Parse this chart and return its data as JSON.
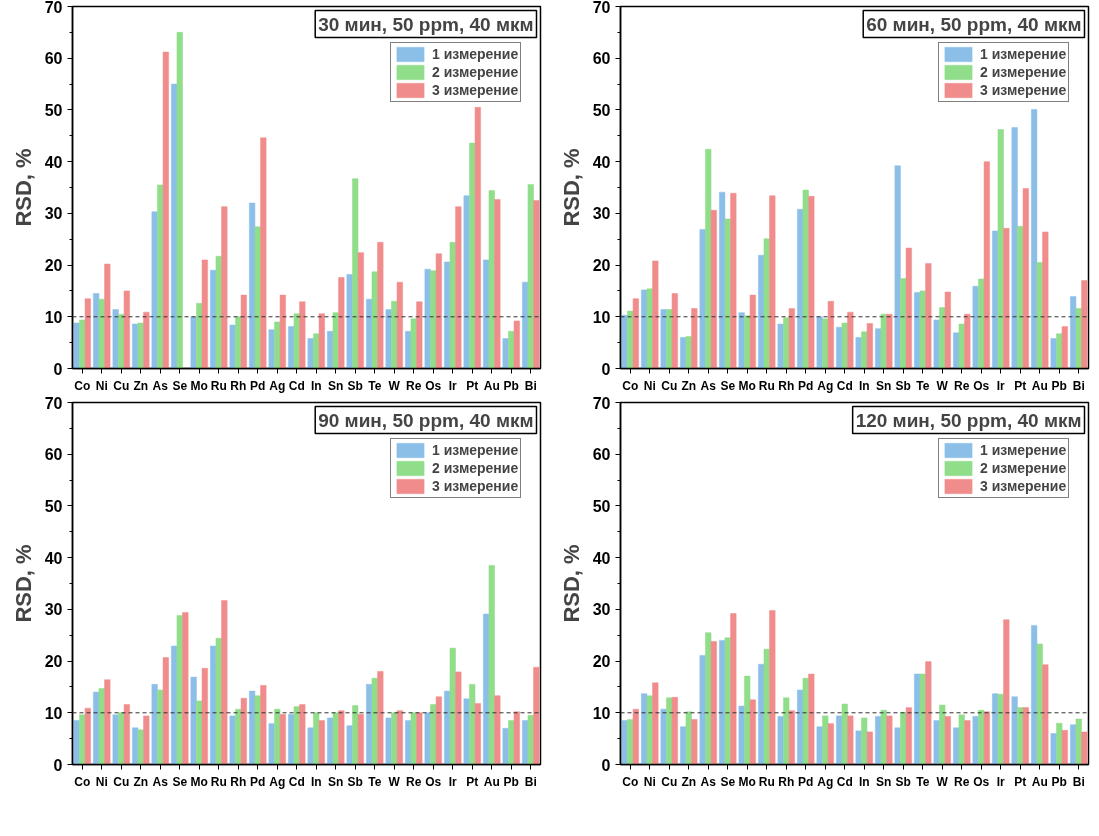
{
  "chart_data": [
    {
      "type": "bar",
      "title": "30 мин, 50 ppm, 40 мкм",
      "ylabel": "RSD, %",
      "legend": "top right",
      "grid": false,
      "categories": [
        "Co",
        "Ni",
        "Cu",
        "Zn",
        "As",
        "Se",
        "Mo",
        "Ru",
        "Rh",
        "Pd",
        "Ag",
        "Cd",
        "In",
        "Sn",
        "Sb",
        "Te",
        "W",
        "Re",
        "Os",
        "Ir",
        "Pt",
        "Au",
        "Pb",
        "Bi"
      ],
      "series": [
        {
          "name": "1 измерение",
          "color": "#8bbfe8",
          "values": [
            8.8,
            14.5,
            11.4,
            8.6,
            30.3,
            55,
            10,
            19,
            8.4,
            32,
            7.5,
            8.1,
            5.8,
            7.2,
            18.2,
            13.4,
            11.4,
            7.2,
            19.2,
            20.6,
            33.4,
            21,
            5.8,
            16.7
          ]
        },
        {
          "name": "2 измерение",
          "color": "#90dd8a",
          "values": [
            9.4,
            13.4,
            10.5,
            8.8,
            35.5,
            65,
            12.6,
            21.7,
            10,
            27.4,
            9,
            10.6,
            6.7,
            10.8,
            36.7,
            18.7,
            13,
            9.6,
            18.9,
            24.4,
            43.6,
            34.4,
            7.2,
            35.6
          ]
        },
        {
          "name": "3 измерение",
          "color": "#f08c8c",
          "values": [
            13.5,
            20.2,
            15,
            10.9,
            61.2,
            null,
            21,
            31.3,
            14.2,
            44.6,
            14.2,
            12.9,
            10.6,
            17.6,
            22.4,
            24.4,
            16.7,
            12.9,
            22.2,
            31.3,
            50.5,
            32.7,
            9.2,
            32.5
          ]
        }
      ],
      "ylim": [
        0,
        70
      ],
      "yticks": [
        0,
        10,
        20,
        30,
        40,
        50,
        60,
        70
      ],
      "ref_lines": [
        {
          "axis": "y",
          "value": 10,
          "color": "#333333",
          "line_style": "dashed"
        }
      ]
    },
    {
      "type": "bar",
      "title": "60 мин, 50 ppm, 40 мкм",
      "ylabel": "RSD, %",
      "legend": "top right",
      "grid": false,
      "categories": [
        "Co",
        "Ni",
        "Cu",
        "Zn",
        "As",
        "Se",
        "Mo",
        "Ru",
        "Rh",
        "Pd",
        "Ag",
        "Cd",
        "In",
        "Sn",
        "Sb",
        "Te",
        "W",
        "Re",
        "Os",
        "Ir",
        "Pt",
        "Au",
        "Pb",
        "Bi"
      ],
      "series": [
        {
          "name": "1 измерение",
          "color": "#8bbfe8",
          "values": [
            10.3,
            15.2,
            11.4,
            6.0,
            26.9,
            34.1,
            10.8,
            21.9,
            8.6,
            30.8,
            10.0,
            8.0,
            6.0,
            7.7,
            39.2,
            14.7,
            9.4,
            6.9,
            15.9,
            26.6,
            46.6,
            50.1,
            5.8,
            13.9
          ]
        },
        {
          "name": "2 измерение",
          "color": "#90dd8a",
          "values": [
            11.1,
            15.4,
            11.4,
            6.2,
            42.4,
            28.9,
            10.2,
            25.1,
            9.8,
            34.5,
            9.6,
            8.8,
            7.1,
            10.5,
            17.4,
            15.0,
            11.8,
            8.6,
            17.3,
            46.2,
            27.5,
            20.5,
            6.7,
            11.6
          ]
        },
        {
          "name": "3 измерение",
          "color": "#f08c8c",
          "values": [
            13.5,
            20.8,
            14.5,
            11.6,
            30.6,
            33.9,
            14.2,
            33.4,
            11.6,
            33.3,
            13.0,
            10.9,
            8.7,
            10.5,
            23.3,
            20.3,
            14.8,
            10.5,
            40.0,
            27.1,
            34.8,
            26.4,
            8.1,
            17.0
          ]
        }
      ],
      "ylim": [
        0,
        70
      ],
      "yticks": [
        0,
        10,
        20,
        30,
        40,
        50,
        60,
        70
      ],
      "ref_lines": [
        {
          "axis": "y",
          "value": 10,
          "color": "#333333",
          "line_style": "dashed"
        }
      ]
    },
    {
      "type": "bar",
      "title": "90 мин, 50 ppm, 40 мкм",
      "ylabel": "RSD, %",
      "legend": "top right",
      "grid": false,
      "categories": [
        "Co",
        "Ni",
        "Cu",
        "Zn",
        "As",
        "Se",
        "Mo",
        "Ru",
        "Rh",
        "Pd",
        "Ag",
        "Cd",
        "In",
        "Sn",
        "Sb",
        "Te",
        "W",
        "Re",
        "Os",
        "Ir",
        "Pt",
        "Au",
        "Pb",
        "Bi"
      ],
      "series": [
        {
          "name": "1 измерение",
          "color": "#8bbfe8",
          "values": [
            8.5,
            14.0,
            9.6,
            7.1,
            15.5,
            22.9,
            16.9,
            22.9,
            9.4,
            14.2,
            7.9,
            9.7,
            7.1,
            9.0,
            7.5,
            15.5,
            9.0,
            8.5,
            10.0,
            14.2,
            12.7,
            29.1,
            7.0,
            8.5
          ]
        },
        {
          "name": "2 измерение",
          "color": "#90dd8a",
          "values": [
            9.6,
            14.7,
            10.0,
            6.7,
            14.4,
            28.8,
            12.3,
            24.4,
            10.7,
            13.3,
            10.7,
            11.2,
            10.0,
            10.0,
            11.4,
            16.7,
            10.0,
            10.0,
            11.6,
            22.5,
            15.5,
            38.5,
            8.5,
            9.5
          ]
        },
        {
          "name": "3 измерение",
          "color": "#f08c8c",
          "values": [
            10.9,
            16.4,
            11.6,
            9.4,
            20.7,
            29.4,
            18.6,
            31.7,
            12.8,
            15.3,
            9.7,
            11.6,
            8.5,
            10.4,
            9.7,
            18.0,
            10.4,
            10.0,
            13.1,
            17.9,
            11.8,
            13.3,
            10.2,
            18.8
          ]
        }
      ],
      "ylim": [
        0,
        70
      ],
      "yticks": [
        0,
        10,
        20,
        30,
        40,
        50,
        60,
        70
      ],
      "ref_lines": [
        {
          "axis": "y",
          "value": 10,
          "color": "#333333",
          "line_style": "dashed"
        }
      ]
    },
    {
      "type": "bar",
      "title": "120 мин, 50 ppm, 40 мкм",
      "ylabel": "RSD, %",
      "legend": "top right",
      "grid": false,
      "categories": [
        "Co",
        "Ni",
        "Cu",
        "Zn",
        "As",
        "Se",
        "Mo",
        "Ru",
        "Rh",
        "Pd",
        "Ag",
        "Cd",
        "In",
        "Sn",
        "Sb",
        "Te",
        "W",
        "Re",
        "Os",
        "Ir",
        "Pt",
        "Au",
        "Pb",
        "Bi"
      ],
      "series": [
        {
          "name": "1 измерение",
          "color": "#8bbfe8",
          "values": [
            8.5,
            13.7,
            10.7,
            7.3,
            21.1,
            24.0,
            11.3,
            19.4,
            9.3,
            14.4,
            7.3,
            9.4,
            6.5,
            9.3,
            7.1,
            17.5,
            8.5,
            7.1,
            9.3,
            13.7,
            13.1,
            26.9,
            6.0,
            7.7
          ]
        },
        {
          "name": "2 измерение",
          "color": "#90dd8a",
          "values": [
            8.7,
            13.3,
            12.9,
            10.2,
            25.5,
            24.5,
            17.1,
            22.3,
            12.9,
            16.7,
            9.4,
            11.7,
            9.0,
            10.5,
            10.1,
            17.5,
            11.5,
            9.6,
            10.5,
            13.6,
            11.0,
            23.3,
            8.0,
            8.8
          ]
        },
        {
          "name": "3 измерение",
          "color": "#f08c8c",
          "values": [
            10.7,
            15.8,
            13.0,
            8.7,
            23.8,
            29.2,
            12.5,
            29.8,
            10.4,
            17.5,
            7.9,
            9.4,
            6.3,
            9.4,
            11.0,
            19.9,
            9.3,
            8.5,
            10.2,
            28.0,
            11.0,
            19.3,
            6.6,
            6.3
          ]
        }
      ],
      "ylim": [
        0,
        70
      ],
      "yticks": [
        0,
        10,
        20,
        30,
        40,
        50,
        60,
        70
      ],
      "ref_lines": [
        {
          "axis": "y",
          "value": 10,
          "color": "#333333",
          "line_style": "dashed"
        }
      ]
    }
  ]
}
